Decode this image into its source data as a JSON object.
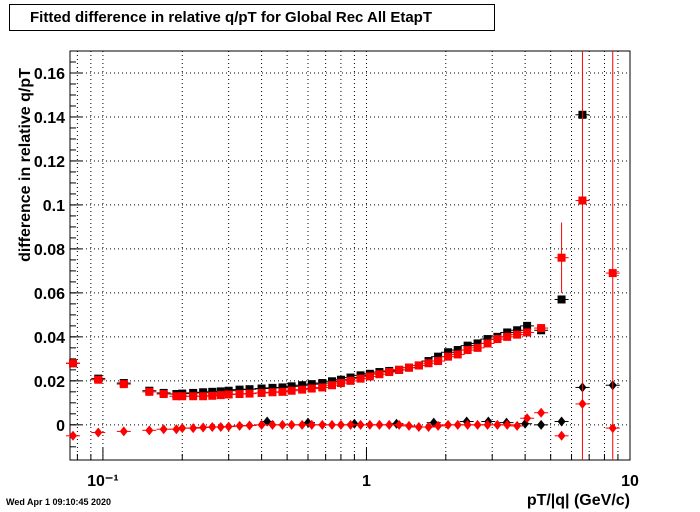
{
  "title": "Fitted difference in relative q/pT for Global Rec All EtapT",
  "timestamp": "Wed Apr  1 09:10:45 2020",
  "chart_data": {
    "type": "scatter",
    "xlabel": "pT/|q| (GeV/c)",
    "ylabel": "difference in relative q/pT",
    "xscale": "log",
    "xlim": [
      0.075,
      10
    ],
    "ylim": [
      -0.016,
      0.17
    ],
    "grid": true,
    "x_tick_labels": [
      "10⁻¹",
      "1",
      "10"
    ],
    "y_tick_labels": [
      "0",
      "0.02",
      "0.04",
      "0.06",
      "0.08",
      "0.1",
      "0.12",
      "0.14",
      "0.16"
    ],
    "series": [
      {
        "color": "#000000",
        "marker": "square",
        "points": [
          [
            0.077,
            0.028
          ],
          [
            0.096,
            0.021
          ],
          [
            0.12,
            0.019
          ],
          [
            0.15,
            0.0155
          ],
          [
            0.17,
            0.0145
          ],
          [
            0.19,
            0.014
          ],
          [
            0.2,
            0.0142
          ],
          [
            0.22,
            0.0145
          ],
          [
            0.24,
            0.0148
          ],
          [
            0.26,
            0.015
          ],
          [
            0.28,
            0.0152
          ],
          [
            0.3,
            0.0155
          ],
          [
            0.33,
            0.016
          ],
          [
            0.36,
            0.0162
          ],
          [
            0.4,
            0.0165
          ],
          [
            0.44,
            0.0168
          ],
          [
            0.48,
            0.017
          ],
          [
            0.52,
            0.0175
          ],
          [
            0.57,
            0.018
          ],
          [
            0.62,
            0.0185
          ],
          [
            0.68,
            0.019
          ],
          [
            0.74,
            0.0198
          ],
          [
            0.8,
            0.0205
          ],
          [
            0.87,
            0.0215
          ],
          [
            0.95,
            0.0225
          ],
          [
            1.03,
            0.0232
          ],
          [
            1.12,
            0.024
          ],
          [
            1.22,
            0.0245
          ],
          [
            1.33,
            0.025
          ],
          [
            1.45,
            0.026
          ],
          [
            1.58,
            0.027
          ],
          [
            1.72,
            0.029
          ],
          [
            1.87,
            0.031
          ],
          [
            2.04,
            0.033
          ],
          [
            2.22,
            0.034
          ],
          [
            2.42,
            0.036
          ],
          [
            2.64,
            0.037
          ],
          [
            2.88,
            0.039
          ],
          [
            3.14,
            0.04
          ],
          [
            3.42,
            0.042
          ],
          [
            3.73,
            0.043
          ],
          [
            4.07,
            0.045
          ],
          [
            4.6,
            0.043
          ],
          [
            5.5,
            0.057
          ],
          [
            6.6,
            0.141
          ]
        ]
      },
      {
        "color": "#ff0000",
        "marker": "square",
        "points": [
          [
            0.077,
            0.028
          ],
          [
            0.096,
            0.0205
          ],
          [
            0.12,
            0.0185
          ],
          [
            0.15,
            0.015
          ],
          [
            0.17,
            0.014
          ],
          [
            0.19,
            0.013
          ],
          [
            0.2,
            0.013
          ],
          [
            0.22,
            0.013
          ],
          [
            0.24,
            0.013
          ],
          [
            0.26,
            0.0132
          ],
          [
            0.28,
            0.0135
          ],
          [
            0.3,
            0.0138
          ],
          [
            0.33,
            0.014
          ],
          [
            0.36,
            0.0142
          ],
          [
            0.4,
            0.0145
          ],
          [
            0.44,
            0.0148
          ],
          [
            0.48,
            0.015
          ],
          [
            0.52,
            0.0155
          ],
          [
            0.57,
            0.016
          ],
          [
            0.62,
            0.0165
          ],
          [
            0.68,
            0.017
          ],
          [
            0.74,
            0.018
          ],
          [
            0.8,
            0.019
          ],
          [
            0.87,
            0.02
          ],
          [
            0.95,
            0.021
          ],
          [
            1.03,
            0.022
          ],
          [
            1.12,
            0.023
          ],
          [
            1.22,
            0.024
          ],
          [
            1.33,
            0.025
          ],
          [
            1.45,
            0.026
          ],
          [
            1.58,
            0.027
          ],
          [
            1.72,
            0.028
          ],
          [
            1.87,
            0.029
          ],
          [
            2.04,
            0.031
          ],
          [
            2.22,
            0.032
          ],
          [
            2.42,
            0.034
          ],
          [
            2.64,
            0.035
          ],
          [
            2.88,
            0.037
          ],
          [
            3.14,
            0.039
          ],
          [
            3.42,
            0.04
          ],
          [
            3.73,
            0.041
          ],
          [
            4.07,
            0.042
          ],
          [
            4.6,
            0.044
          ],
          [
            5.5,
            0.076
          ],
          [
            6.6,
            0.102
          ],
          [
            8.6,
            0.069
          ]
        ]
      },
      {
        "color": "#000000",
        "marker": "diamond",
        "points": [
          [
            0.42,
            0.0015
          ],
          [
            0.6,
            0.001
          ],
          [
            0.9,
            0.0005
          ],
          [
            1.3,
            0.0005
          ],
          [
            1.8,
            0.001
          ],
          [
            2.4,
            0.0015
          ],
          [
            2.9,
            0.0015
          ],
          [
            3.4,
            0.001
          ],
          [
            4.0,
            0.0005
          ],
          [
            4.6,
            0.0
          ],
          [
            5.5,
            0.0015
          ],
          [
            6.6,
            0.017
          ],
          [
            8.6,
            0.018
          ]
        ]
      },
      {
        "color": "#ff0000",
        "marker": "diamond",
        "points": [
          [
            0.077,
            -0.005
          ],
          [
            0.096,
            -0.0035
          ],
          [
            0.12,
            -0.003
          ],
          [
            0.15,
            -0.0025
          ],
          [
            0.17,
            -0.002
          ],
          [
            0.19,
            -0.002
          ],
          [
            0.2,
            -0.0015
          ],
          [
            0.22,
            -0.0015
          ],
          [
            0.24,
            -0.0012
          ],
          [
            0.26,
            -0.001
          ],
          [
            0.28,
            -0.001
          ],
          [
            0.3,
            -0.0008
          ],
          [
            0.33,
            -0.0005
          ],
          [
            0.36,
            -0.0003
          ],
          [
            0.4,
            0.0
          ],
          [
            0.44,
            0.0
          ],
          [
            0.48,
            0.0
          ],
          [
            0.52,
            0.0
          ],
          [
            0.57,
            0.0
          ],
          [
            0.62,
            0.0
          ],
          [
            0.68,
            0.0
          ],
          [
            0.74,
            0.0
          ],
          [
            0.8,
            0.0
          ],
          [
            0.87,
            0.0
          ],
          [
            0.95,
            0.0
          ],
          [
            1.03,
            0.0
          ],
          [
            1.12,
            0.0
          ],
          [
            1.22,
            0.0
          ],
          [
            1.33,
            0.0
          ],
          [
            1.45,
            -0.0005
          ],
          [
            1.58,
            -0.001
          ],
          [
            1.72,
            -0.001
          ],
          [
            1.87,
            -0.0005
          ],
          [
            2.04,
            0.0
          ],
          [
            2.22,
            0.0
          ],
          [
            2.42,
            0.0
          ],
          [
            2.64,
            0.0
          ],
          [
            2.88,
            0.0
          ],
          [
            3.14,
            0.0
          ],
          [
            3.42,
            0.0
          ],
          [
            3.73,
            -0.0005
          ],
          [
            4.07,
            0.003
          ],
          [
            4.6,
            0.0055
          ],
          [
            5.5,
            -0.005
          ],
          [
            6.6,
            0.0095
          ],
          [
            8.6,
            -0.0015
          ]
        ]
      }
    ]
  }
}
